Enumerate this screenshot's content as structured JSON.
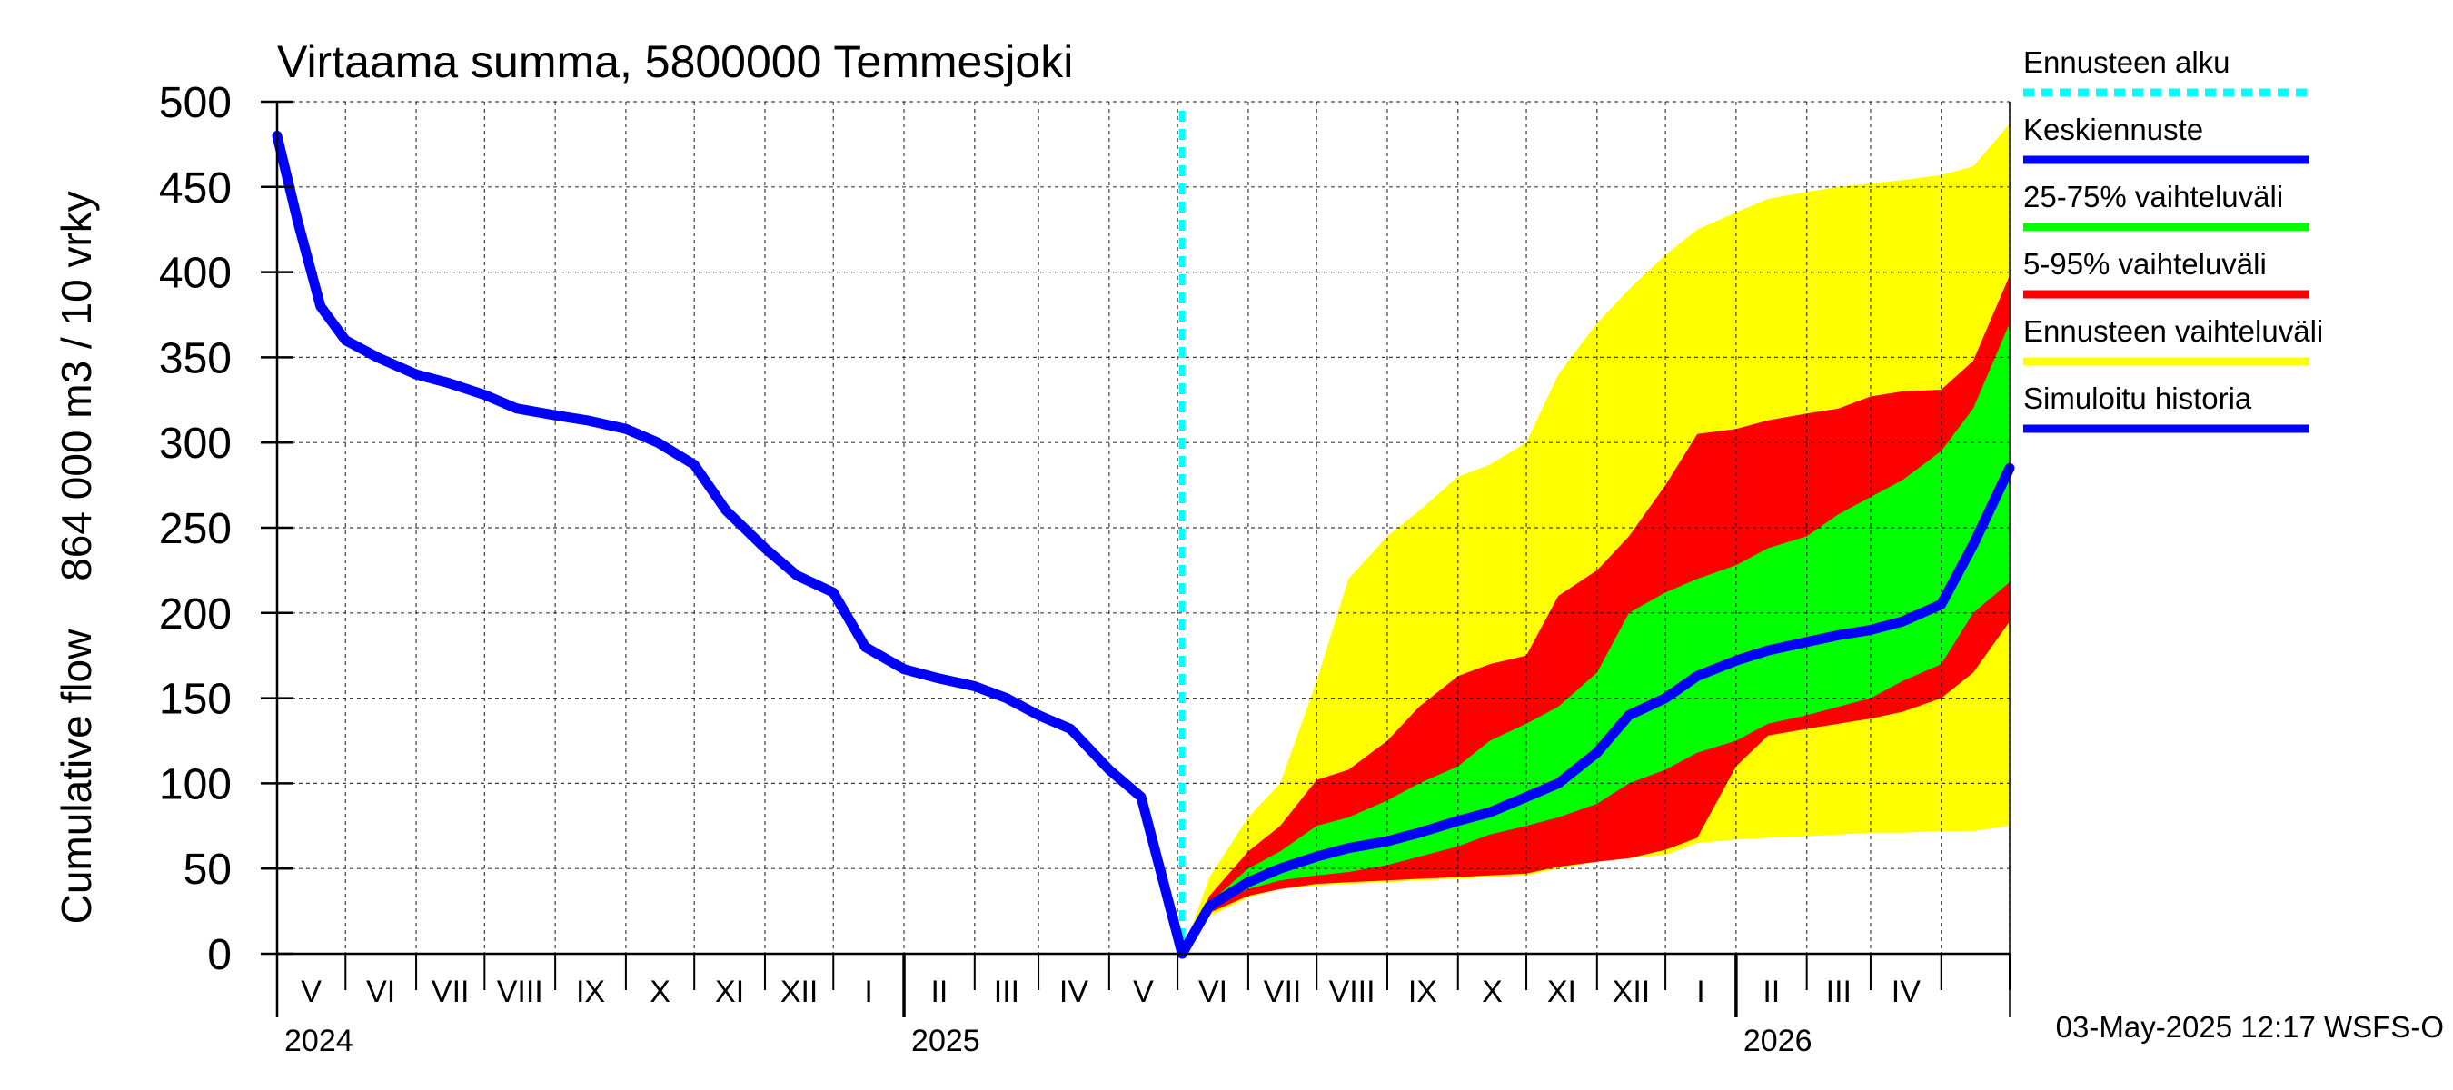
{
  "chart_data": {
    "type": "area",
    "title": "Virtaama summa, 5800000 Temmesjoki",
    "ylabel_lines": [
      "864 000 m3 / 10 vrky",
      "Cumulative flow"
    ],
    "xlabel": "",
    "ylim": [
      0,
      500
    ],
    "yticks": [
      0,
      50,
      100,
      150,
      200,
      250,
      300,
      350,
      400,
      450,
      500
    ],
    "xlim": [
      "2024-04-01",
      "2026-05-01"
    ],
    "x_axis": {
      "month_labels": [
        "V",
        "VI",
        "VII",
        "VIII",
        "IX",
        "X",
        "XI",
        "XII",
        "I",
        "II",
        "III",
        "IV",
        "V",
        "VI",
        "VII",
        "VIII",
        "IX",
        "X",
        "XI",
        "XII",
        "I",
        "II",
        "III",
        "IV"
      ],
      "year_labels": [
        {
          "label": "2024",
          "date": "2024-04-01"
        },
        {
          "label": "2025",
          "date": "2025-01-01"
        },
        {
          "label": "2026",
          "date": "2026-01-01"
        }
      ]
    },
    "grid": true,
    "legend_position": "right",
    "forecast_start": "2025-05-03",
    "series": [
      {
        "name": "Ennusteen vaihteluväli",
        "kind": "band",
        "color": "#ffff00",
        "x": [
          "2025-05-03",
          "2025-05-15",
          "2025-06-01",
          "2025-06-15",
          "2025-07-01",
          "2025-07-15",
          "2025-08-01",
          "2025-08-15",
          "2025-09-01",
          "2025-09-15",
          "2025-10-01",
          "2025-10-15",
          "2025-11-01",
          "2025-11-15",
          "2025-12-01",
          "2025-12-15",
          "2026-01-01",
          "2026-01-15",
          "2026-02-01",
          "2026-02-15",
          "2026-03-01",
          "2026-03-15",
          "2026-04-01",
          "2026-04-15",
          "2026-05-01"
        ],
        "lower": [
          0,
          22,
          33,
          38,
          40,
          41,
          42,
          43,
          44,
          45,
          46,
          50,
          54,
          56,
          58,
          65,
          67,
          68,
          69,
          70,
          71,
          71,
          72,
          72,
          75
        ],
        "upper": [
          0,
          45,
          80,
          100,
          160,
          220,
          245,
          260,
          280,
          287,
          300,
          340,
          370,
          390,
          410,
          425,
          435,
          443,
          447,
          450,
          452,
          454,
          457,
          462,
          487
        ]
      },
      {
        "name": "5-95% vaihteluväli",
        "kind": "band",
        "color": "#ff0000",
        "x": [
          "2025-05-03",
          "2025-05-15",
          "2025-06-01",
          "2025-06-15",
          "2025-07-01",
          "2025-07-15",
          "2025-08-01",
          "2025-08-15",
          "2025-09-01",
          "2025-09-15",
          "2025-10-01",
          "2025-10-15",
          "2025-11-01",
          "2025-11-15",
          "2025-12-01",
          "2025-12-15",
          "2026-01-01",
          "2026-01-15",
          "2026-02-01",
          "2026-02-15",
          "2026-03-01",
          "2026-03-15",
          "2026-04-01",
          "2026-04-15",
          "2026-05-01"
        ],
        "lower": [
          0,
          24,
          34,
          38,
          41,
          42,
          43,
          44,
          45,
          46,
          47,
          51,
          54,
          56,
          61,
          68,
          110,
          128,
          132,
          135,
          138,
          142,
          150,
          165,
          195
        ],
        "upper": [
          0,
          34,
          60,
          75,
          102,
          108,
          125,
          145,
          163,
          170,
          175,
          210,
          225,
          245,
          275,
          305,
          308,
          313,
          317,
          320,
          327,
          330,
          331,
          348,
          398
        ]
      },
      {
        "name": "25-75% vaihteluväli",
        "kind": "band",
        "color": "#00ff00",
        "x": [
          "2025-05-03",
          "2025-05-15",
          "2025-06-01",
          "2025-06-15",
          "2025-07-01",
          "2025-07-15",
          "2025-08-01",
          "2025-08-15",
          "2025-09-01",
          "2025-09-15",
          "2025-10-01",
          "2025-10-15",
          "2025-11-01",
          "2025-11-15",
          "2025-12-01",
          "2025-12-15",
          "2026-01-01",
          "2026-01-15",
          "2026-02-01",
          "2026-02-15",
          "2026-03-01",
          "2026-03-15",
          "2026-04-01",
          "2026-04-15",
          "2026-05-01"
        ],
        "lower": [
          0,
          27,
          38,
          43,
          46,
          48,
          52,
          57,
          63,
          70,
          75,
          80,
          88,
          100,
          108,
          118,
          125,
          135,
          140,
          145,
          150,
          160,
          170,
          200,
          218
        ],
        "upper": [
          0,
          30,
          50,
          60,
          75,
          80,
          90,
          100,
          110,
          125,
          135,
          145,
          165,
          200,
          212,
          220,
          228,
          238,
          245,
          258,
          268,
          278,
          295,
          320,
          370
        ]
      },
      {
        "name": "Keskiennuste",
        "kind": "line",
        "color": "#0000ff",
        "x": [
          "2025-05-03",
          "2025-05-15",
          "2025-06-01",
          "2025-06-15",
          "2025-07-01",
          "2025-07-15",
          "2025-08-01",
          "2025-08-15",
          "2025-09-01",
          "2025-09-15",
          "2025-10-01",
          "2025-10-15",
          "2025-11-01",
          "2025-11-15",
          "2025-12-01",
          "2025-12-15",
          "2026-01-01",
          "2026-01-15",
          "2026-02-01",
          "2026-02-15",
          "2026-03-01",
          "2026-03-15",
          "2026-04-01",
          "2026-04-15",
          "2026-05-01"
        ],
        "values": [
          0,
          28,
          42,
          50,
          57,
          62,
          66,
          71,
          78,
          83,
          92,
          100,
          118,
          140,
          150,
          163,
          172,
          178,
          183,
          187,
          190,
          195,
          205,
          240,
          285
        ]
      },
      {
        "name": "Simuloitu historia",
        "kind": "line",
        "color": "#0000ff",
        "x": [
          "2024-04-01",
          "2024-04-10",
          "2024-04-20",
          "2024-05-01",
          "2024-05-15",
          "2024-06-01",
          "2024-06-15",
          "2024-07-01",
          "2024-07-15",
          "2024-08-01",
          "2024-08-15",
          "2024-09-01",
          "2024-09-15",
          "2024-10-01",
          "2024-10-15",
          "2024-11-01",
          "2024-11-15",
          "2024-12-01",
          "2024-12-15",
          "2025-01-01",
          "2025-01-15",
          "2025-02-01",
          "2025-02-15",
          "2025-03-01",
          "2025-03-15",
          "2025-04-01",
          "2025-04-15",
          "2025-05-03"
        ],
        "values": [
          480,
          430,
          380,
          360,
          350,
          340,
          335,
          328,
          320,
          316,
          313,
          308,
          300,
          287,
          260,
          238,
          222,
          212,
          180,
          167,
          162,
          157,
          150,
          140,
          132,
          108,
          92,
          0
        ]
      }
    ],
    "legend": [
      {
        "name": "Ennusteen alku",
        "color": "#00ffff",
        "style": "dashed"
      },
      {
        "name": "Keskiennuste",
        "color": "#0000ff",
        "style": "solid"
      },
      {
        "name": "25-75% vaihteluväli",
        "color": "#00ff00",
        "style": "solid"
      },
      {
        "name": "5-95% vaihteluväli",
        "color": "#ff0000",
        "style": "solid"
      },
      {
        "name": "Ennusteen vaihteluväli",
        "color": "#ffff00",
        "style": "solid"
      },
      {
        "name": "Simuloitu historia",
        "color": "#0000ff",
        "style": "solid"
      }
    ],
    "footer": "03-May-2025 12:17 WSFS-O"
  }
}
